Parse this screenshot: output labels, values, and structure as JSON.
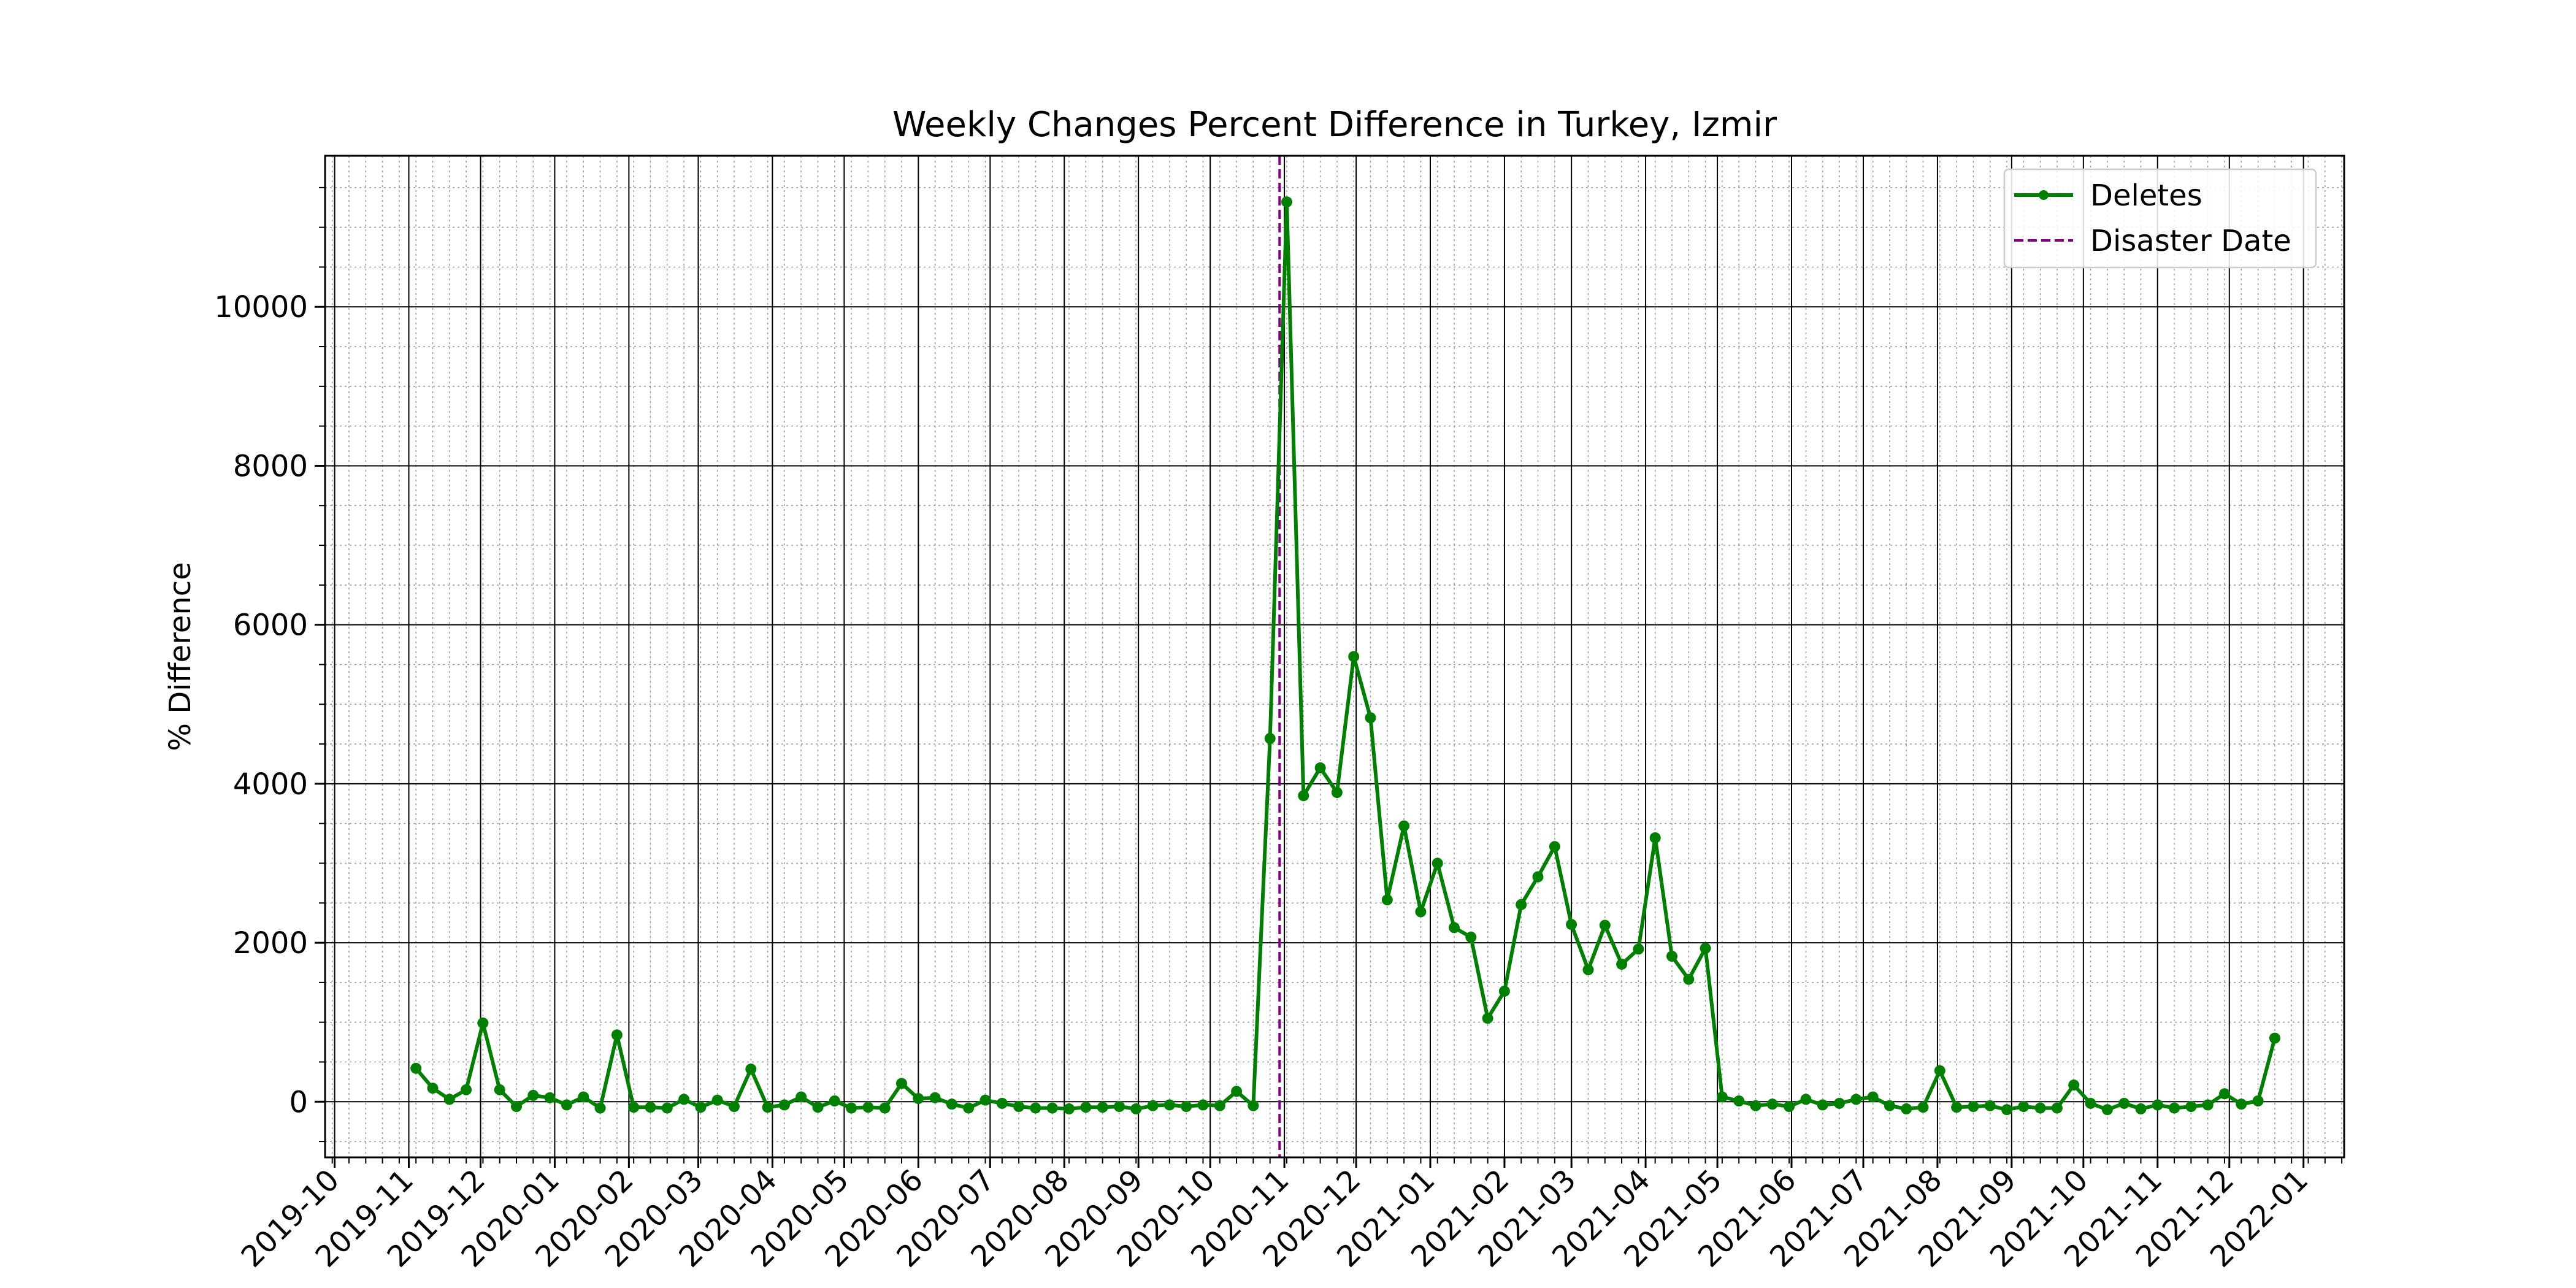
{
  "chart_data": {
    "type": "line",
    "title": "Weekly Changes Percent Difference in Turkey, Izmir",
    "xlabel": "",
    "ylabel": "% Difference",
    "x_axis_type": "date",
    "xlim": [
      "2019-09-27",
      "2022-01-18"
    ],
    "ylim": [
      -700,
      11900
    ],
    "x_tick_labels": [
      "2019-10",
      "2019-11",
      "2019-12",
      "2020-01",
      "2020-02",
      "2020-03",
      "2020-04",
      "2020-05",
      "2020-06",
      "2020-07",
      "2020-08",
      "2020-09",
      "2020-10",
      "2020-11",
      "2020-12",
      "2021-01",
      "2021-02",
      "2021-03",
      "2021-04",
      "2021-05",
      "2021-06",
      "2021-07",
      "2021-08",
      "2021-09",
      "2021-10",
      "2021-11",
      "2021-12",
      "2022-01"
    ],
    "y_ticks": [
      0,
      2000,
      4000,
      6000,
      8000,
      10000
    ],
    "grid": {
      "major": true,
      "minor": true
    },
    "legend": {
      "position": "top-right",
      "entries": [
        "Deletes",
        "Disaster Date"
      ]
    },
    "disaster_date": "2020-10-30",
    "series": [
      {
        "name": "Deletes",
        "color": "#008000",
        "marker": "circle",
        "x": [
          "2019-11-04",
          "2019-11-11",
          "2019-11-18",
          "2019-11-25",
          "2019-12-02",
          "2019-12-09",
          "2019-12-16",
          "2019-12-23",
          "2019-12-30",
          "2020-01-06",
          "2020-01-13",
          "2020-01-20",
          "2020-01-27",
          "2020-02-03",
          "2020-02-10",
          "2020-02-17",
          "2020-02-24",
          "2020-03-02",
          "2020-03-09",
          "2020-03-16",
          "2020-03-23",
          "2020-03-30",
          "2020-04-06",
          "2020-04-13",
          "2020-04-20",
          "2020-04-27",
          "2020-05-04",
          "2020-05-11",
          "2020-05-18",
          "2020-05-25",
          "2020-06-01",
          "2020-06-08",
          "2020-06-15",
          "2020-06-22",
          "2020-06-29",
          "2020-07-06",
          "2020-07-13",
          "2020-07-20",
          "2020-07-27",
          "2020-08-03",
          "2020-08-10",
          "2020-08-17",
          "2020-08-24",
          "2020-08-31",
          "2020-09-07",
          "2020-09-14",
          "2020-09-21",
          "2020-09-28",
          "2020-10-05",
          "2020-10-12",
          "2020-10-19",
          "2020-10-26",
          "2020-11-02",
          "2020-11-09",
          "2020-11-16",
          "2020-11-23",
          "2020-11-30",
          "2020-12-07",
          "2020-12-14",
          "2020-12-21",
          "2020-12-28",
          "2021-01-04",
          "2021-01-11",
          "2021-01-18",
          "2021-01-25",
          "2021-02-01",
          "2021-02-08",
          "2021-02-15",
          "2021-02-22",
          "2021-03-01",
          "2021-03-08",
          "2021-03-15",
          "2021-03-22",
          "2021-03-29",
          "2021-04-05",
          "2021-04-12",
          "2021-04-19",
          "2021-04-26",
          "2021-05-03",
          "2021-05-10",
          "2021-05-17",
          "2021-05-24",
          "2021-05-31",
          "2021-06-07",
          "2021-06-14",
          "2021-06-21",
          "2021-06-28",
          "2021-07-05",
          "2021-07-12",
          "2021-07-19",
          "2021-07-26",
          "2021-08-02",
          "2021-08-09",
          "2021-08-16",
          "2021-08-23",
          "2021-08-30",
          "2021-09-06",
          "2021-09-13",
          "2021-09-20",
          "2021-09-27",
          "2021-10-04",
          "2021-10-11",
          "2021-10-18",
          "2021-10-25",
          "2021-11-01",
          "2021-11-08",
          "2021-11-15",
          "2021-11-22",
          "2021-11-29",
          "2021-12-06",
          "2021-12-13",
          "2021-12-20"
        ],
        "y": [
          420,
          170,
          30,
          150,
          990,
          150,
          -60,
          80,
          50,
          -40,
          60,
          -80,
          840,
          -70,
          -70,
          -80,
          30,
          -70,
          20,
          -60,
          410,
          -70,
          -40,
          60,
          -70,
          10,
          -80,
          -70,
          -80,
          230,
          40,
          50,
          -30,
          -80,
          20,
          -20,
          -60,
          -80,
          -80,
          -90,
          -70,
          -70,
          -60,
          -90,
          -50,
          -40,
          -60,
          -40,
          -50,
          130,
          -50,
          4570,
          11320,
          3850,
          4200,
          3890,
          5600,
          4830,
          2540,
          3470,
          2390,
          3000,
          2190,
          2070,
          1050,
          1390,
          2480,
          2830,
          3210,
          2230,
          1660,
          2220,
          1730,
          1920,
          3320,
          1830,
          1540,
          1930,
          60,
          10,
          -50,
          -30,
          -60,
          30,
          -40,
          -20,
          30,
          60,
          -50,
          -90,
          -70,
          390,
          -70,
          -60,
          -50,
          -100,
          -60,
          -80,
          -80,
          210,
          -20,
          -100,
          -20,
          -90,
          -40,
          -80,
          -60,
          -40,
          100,
          -30,
          10,
          800
        ]
      },
      {
        "name": "Disaster Date",
        "color": "#800080",
        "style": "dashed"
      }
    ]
  }
}
